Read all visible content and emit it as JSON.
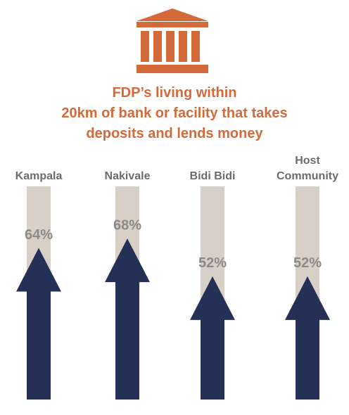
{
  "chart_data": {
    "type": "bar",
    "title": [
      "FDP’s living within",
      "20km of bank or facility that takes",
      "deposits and lends money"
    ],
    "categories": [
      "Kampala",
      "Nakivale",
      "Bidi Bidi",
      "Host Community"
    ],
    "values": [
      64,
      68,
      52,
      52
    ],
    "value_labels": [
      "64%",
      "68%",
      "52%",
      "52%"
    ],
    "color": "#253057",
    "ylim": [
      0,
      90
    ]
  }
}
